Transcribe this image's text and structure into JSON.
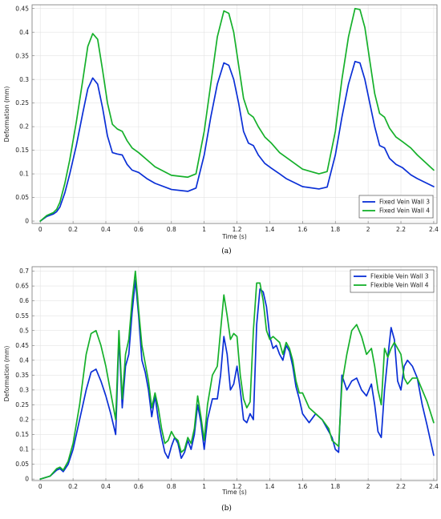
{
  "chart_data": [
    {
      "type": "line",
      "panel_label": "(a)",
      "xlabel": "Time (s)",
      "ylabel": "Deformation (mm)",
      "xlim": [
        -0.05,
        2.42
      ],
      "ylim": [
        -0.005,
        0.458
      ],
      "xticks": [
        0,
        0.2,
        0.4,
        0.6,
        0.8,
        1,
        1.2,
        1.4,
        1.6,
        1.8,
        2,
        2.2,
        2.4
      ],
      "yticks": [
        0,
        0.05,
        0.1,
        0.15,
        0.2,
        0.25,
        0.3,
        0.35,
        0.4,
        0.45
      ],
      "grid": true,
      "legend_position": "bottom-right",
      "series": [
        {
          "name": "Fixed Vein Wall 3",
          "color": "#0a2fd6",
          "x": [
            0,
            0.04,
            0.08,
            0.1,
            0.12,
            0.15,
            0.18,
            0.22,
            0.26,
            0.29,
            0.32,
            0.35,
            0.38,
            0.41,
            0.44,
            0.47,
            0.5,
            0.53,
            0.56,
            0.6,
            0.65,
            0.7,
            0.8,
            0.9,
            0.95,
            1.0,
            1.04,
            1.08,
            1.12,
            1.15,
            1.18,
            1.21,
            1.24,
            1.27,
            1.3,
            1.33,
            1.37,
            1.41,
            1.46,
            1.5,
            1.6,
            1.7,
            1.75,
            1.8,
            1.84,
            1.88,
            1.92,
            1.95,
            1.98,
            2.01,
            2.04,
            2.07,
            2.1,
            2.13,
            2.17,
            2.21,
            2.26,
            2.3,
            2.4
          ],
          "y": [
            0,
            0.01,
            0.015,
            0.02,
            0.03,
            0.06,
            0.1,
            0.16,
            0.23,
            0.28,
            0.303,
            0.29,
            0.24,
            0.18,
            0.145,
            0.142,
            0.14,
            0.12,
            0.108,
            0.103,
            0.09,
            0.08,
            0.067,
            0.063,
            0.07,
            0.14,
            0.22,
            0.29,
            0.335,
            0.33,
            0.3,
            0.25,
            0.19,
            0.165,
            0.16,
            0.14,
            0.122,
            0.112,
            0.1,
            0.09,
            0.073,
            0.068,
            0.072,
            0.14,
            0.22,
            0.29,
            0.338,
            0.335,
            0.3,
            0.25,
            0.2,
            0.16,
            0.155,
            0.133,
            0.12,
            0.113,
            0.098,
            0.09,
            0.073
          ]
        },
        {
          "name": "Fixed Vein Wall 4",
          "color": "#15b02a",
          "x": [
            0,
            0.04,
            0.08,
            0.1,
            0.12,
            0.15,
            0.18,
            0.22,
            0.26,
            0.29,
            0.32,
            0.35,
            0.38,
            0.41,
            0.44,
            0.47,
            0.5,
            0.53,
            0.56,
            0.6,
            0.65,
            0.7,
            0.8,
            0.9,
            0.95,
            1.0,
            1.04,
            1.08,
            1.12,
            1.15,
            1.18,
            1.21,
            1.24,
            1.27,
            1.3,
            1.33,
            1.37,
            1.41,
            1.46,
            1.5,
            1.6,
            1.7,
            1.75,
            1.8,
            1.84,
            1.88,
            1.92,
            1.95,
            1.98,
            2.01,
            2.04,
            2.07,
            2.1,
            2.13,
            2.17,
            2.21,
            2.26,
            2.3,
            2.4
          ],
          "y": [
            0,
            0.012,
            0.018,
            0.025,
            0.04,
            0.08,
            0.13,
            0.21,
            0.3,
            0.37,
            0.397,
            0.385,
            0.32,
            0.25,
            0.205,
            0.195,
            0.19,
            0.17,
            0.155,
            0.145,
            0.13,
            0.115,
            0.097,
            0.093,
            0.1,
            0.19,
            0.29,
            0.39,
            0.445,
            0.44,
            0.4,
            0.33,
            0.26,
            0.228,
            0.22,
            0.2,
            0.178,
            0.165,
            0.145,
            0.135,
            0.11,
            0.1,
            0.105,
            0.19,
            0.3,
            0.39,
            0.45,
            0.448,
            0.41,
            0.34,
            0.27,
            0.228,
            0.22,
            0.197,
            0.178,
            0.168,
            0.155,
            0.14,
            0.108
          ]
        }
      ]
    },
    {
      "type": "line",
      "panel_label": "(b)",
      "xlabel": "Time (s)",
      "ylabel": "Deformation (mm)",
      "xlim": [
        -0.05,
        2.42
      ],
      "ylim": [
        -0.005,
        0.715
      ],
      "xticks": [
        0,
        0.2,
        0.4,
        0.6,
        0.8,
        1,
        1.2,
        1.4,
        1.6,
        1.8,
        2,
        2.2,
        2.4
      ],
      "yticks": [
        0,
        0.05,
        0.1,
        0.15,
        0.2,
        0.25,
        0.3,
        0.35,
        0.4,
        0.45,
        0.5,
        0.55,
        0.6,
        0.65,
        0.7
      ],
      "grid": true,
      "legend_position": "top-right",
      "series": [
        {
          "name": "Flexible Vein Wall 3",
          "color": "#0a2fd6",
          "x": [
            0,
            0.06,
            0.1,
            0.12,
            0.14,
            0.17,
            0.2,
            0.24,
            0.28,
            0.31,
            0.34,
            0.37,
            0.4,
            0.43,
            0.46,
            0.48,
            0.5,
            0.52,
            0.54,
            0.56,
            0.58,
            0.6,
            0.62,
            0.64,
            0.66,
            0.68,
            0.7,
            0.72,
            0.74,
            0.76,
            0.78,
            0.8,
            0.82,
            0.84,
            0.86,
            0.88,
            0.9,
            0.92,
            0.94,
            0.96,
            0.98,
            1.0,
            1.02,
            1.05,
            1.08,
            1.1,
            1.12,
            1.14,
            1.16,
            1.18,
            1.2,
            1.22,
            1.24,
            1.26,
            1.28,
            1.3,
            1.32,
            1.34,
            1.36,
            1.38,
            1.4,
            1.42,
            1.44,
            1.46,
            1.48,
            1.5,
            1.52,
            1.54,
            1.56,
            1.58,
            1.6,
            1.64,
            1.68,
            1.72,
            1.76,
            1.78,
            1.8,
            1.82,
            1.84,
            1.87,
            1.9,
            1.93,
            1.96,
            1.99,
            2.02,
            2.04,
            2.06,
            2.08,
            2.1,
            2.12,
            2.14,
            2.16,
            2.18,
            2.2,
            2.22,
            2.24,
            2.27,
            2.3,
            2.33,
            2.36,
            2.4
          ],
          "y": [
            0,
            0.01,
            0.03,
            0.035,
            0.025,
            0.05,
            0.1,
            0.2,
            0.3,
            0.36,
            0.37,
            0.33,
            0.28,
            0.22,
            0.15,
            0.48,
            0.24,
            0.38,
            0.42,
            0.56,
            0.67,
            0.55,
            0.4,
            0.36,
            0.3,
            0.21,
            0.28,
            0.2,
            0.14,
            0.09,
            0.07,
            0.11,
            0.14,
            0.12,
            0.07,
            0.09,
            0.13,
            0.1,
            0.15,
            0.25,
            0.19,
            0.1,
            0.2,
            0.27,
            0.27,
            0.35,
            0.48,
            0.42,
            0.3,
            0.32,
            0.38,
            0.3,
            0.2,
            0.19,
            0.22,
            0.2,
            0.52,
            0.64,
            0.63,
            0.58,
            0.48,
            0.44,
            0.45,
            0.42,
            0.4,
            0.45,
            0.43,
            0.38,
            0.31,
            0.27,
            0.22,
            0.19,
            0.22,
            0.2,
            0.16,
            0.14,
            0.1,
            0.09,
            0.35,
            0.3,
            0.33,
            0.34,
            0.3,
            0.28,
            0.32,
            0.25,
            0.16,
            0.14,
            0.3,
            0.41,
            0.51,
            0.47,
            0.33,
            0.3,
            0.38,
            0.4,
            0.38,
            0.34,
            0.25,
            0.18,
            0.08
          ]
        },
        {
          "name": "Flexible Vein Wall 4",
          "color": "#15b02a",
          "x": [
            0,
            0.06,
            0.1,
            0.12,
            0.14,
            0.17,
            0.2,
            0.24,
            0.28,
            0.31,
            0.34,
            0.37,
            0.4,
            0.43,
            0.46,
            0.48,
            0.5,
            0.52,
            0.54,
            0.56,
            0.58,
            0.6,
            0.62,
            0.64,
            0.66,
            0.68,
            0.7,
            0.72,
            0.74,
            0.76,
            0.78,
            0.8,
            0.82,
            0.84,
            0.86,
            0.88,
            0.9,
            0.92,
            0.94,
            0.96,
            0.98,
            1.0,
            1.02,
            1.05,
            1.08,
            1.1,
            1.12,
            1.14,
            1.16,
            1.18,
            1.2,
            1.22,
            1.24,
            1.26,
            1.28,
            1.3,
            1.32,
            1.34,
            1.36,
            1.38,
            1.4,
            1.42,
            1.44,
            1.46,
            1.48,
            1.5,
            1.52,
            1.54,
            1.56,
            1.58,
            1.6,
            1.64,
            1.68,
            1.72,
            1.76,
            1.78,
            1.8,
            1.82,
            1.84,
            1.87,
            1.9,
            1.93,
            1.96,
            1.99,
            2.02,
            2.04,
            2.06,
            2.08,
            2.1,
            2.12,
            2.14,
            2.16,
            2.18,
            2.2,
            2.22,
            2.24,
            2.27,
            2.3,
            2.33,
            2.36,
            2.4
          ],
          "y": [
            0,
            0.01,
            0.035,
            0.04,
            0.03,
            0.06,
            0.12,
            0.25,
            0.42,
            0.49,
            0.5,
            0.45,
            0.38,
            0.29,
            0.2,
            0.5,
            0.27,
            0.42,
            0.47,
            0.6,
            0.7,
            0.57,
            0.45,
            0.39,
            0.33,
            0.24,
            0.29,
            0.24,
            0.17,
            0.12,
            0.13,
            0.16,
            0.14,
            0.13,
            0.09,
            0.1,
            0.14,
            0.12,
            0.17,
            0.28,
            0.21,
            0.13,
            0.25,
            0.35,
            0.38,
            0.5,
            0.62,
            0.55,
            0.47,
            0.49,
            0.48,
            0.35,
            0.27,
            0.24,
            0.26,
            0.5,
            0.66,
            0.66,
            0.6,
            0.5,
            0.47,
            0.48,
            0.47,
            0.46,
            0.42,
            0.46,
            0.44,
            0.4,
            0.33,
            0.29,
            0.29,
            0.24,
            0.22,
            0.2,
            0.17,
            0.13,
            0.12,
            0.11,
            0.32,
            0.42,
            0.5,
            0.52,
            0.48,
            0.42,
            0.44,
            0.38,
            0.3,
            0.25,
            0.44,
            0.41,
            0.44,
            0.46,
            0.44,
            0.42,
            0.34,
            0.32,
            0.34,
            0.34,
            0.3,
            0.26,
            0.19
          ]
        }
      ]
    }
  ]
}
